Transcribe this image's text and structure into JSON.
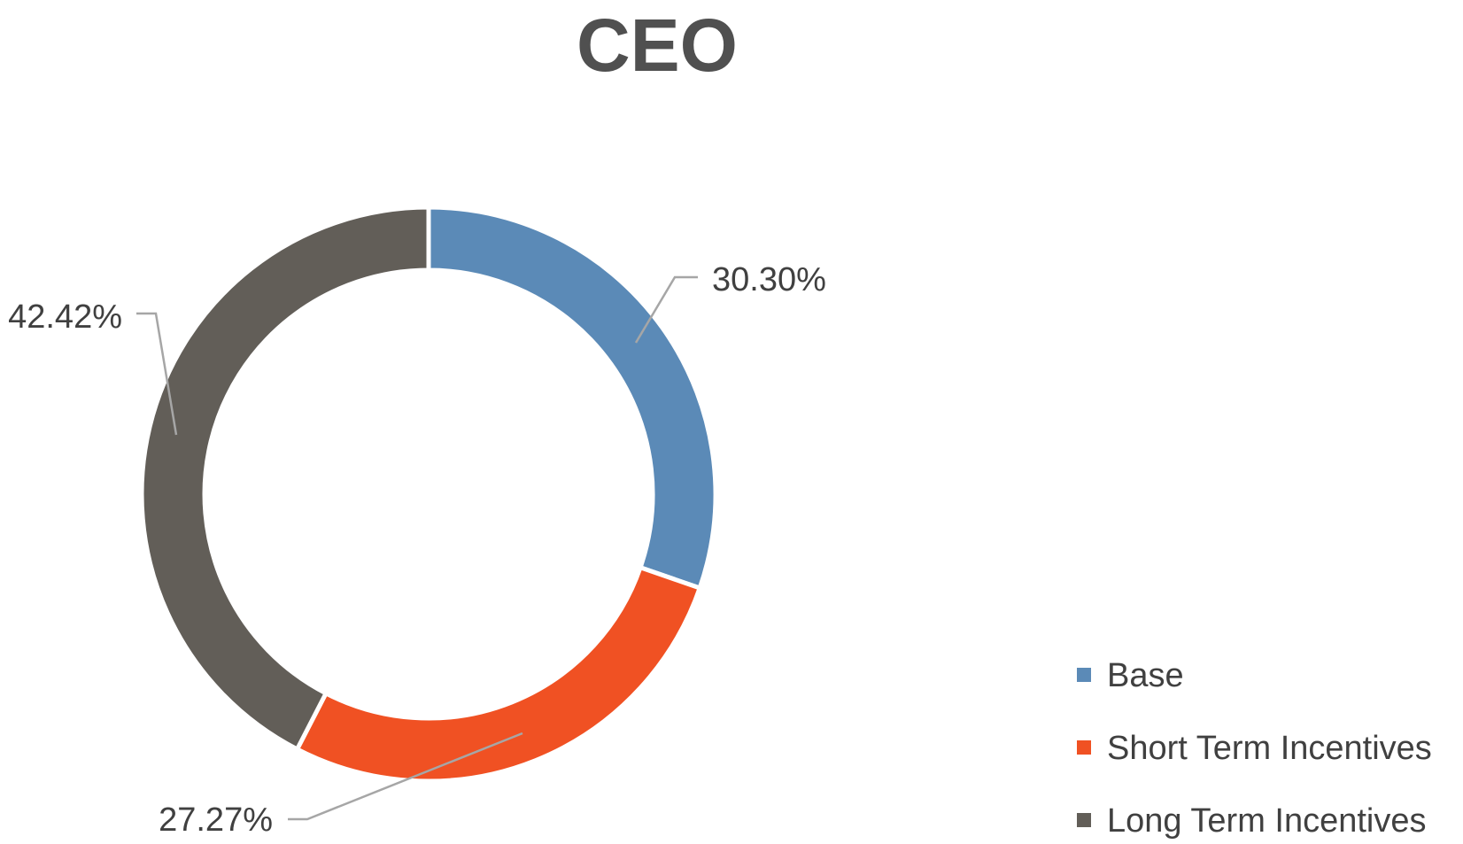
{
  "chart_data": {
    "type": "pie",
    "donut": true,
    "title": "CEO",
    "categories": [
      "Base",
      "Short Term Incentives",
      "Long Term Incentives"
    ],
    "values": [
      30.3,
      27.27,
      42.42
    ],
    "value_labels": [
      "30.30%",
      "27.27%",
      "42.42%"
    ],
    "unit": "%",
    "colors": [
      "#5b8ab7",
      "#f05123",
      "#625e58"
    ],
    "start_angle_deg": 0,
    "direction": "clockwise",
    "legend": {
      "position": "bottom-right",
      "entries": [
        "Base",
        "Short Term Incentives",
        "Long Term Incentives"
      ]
    }
  }
}
